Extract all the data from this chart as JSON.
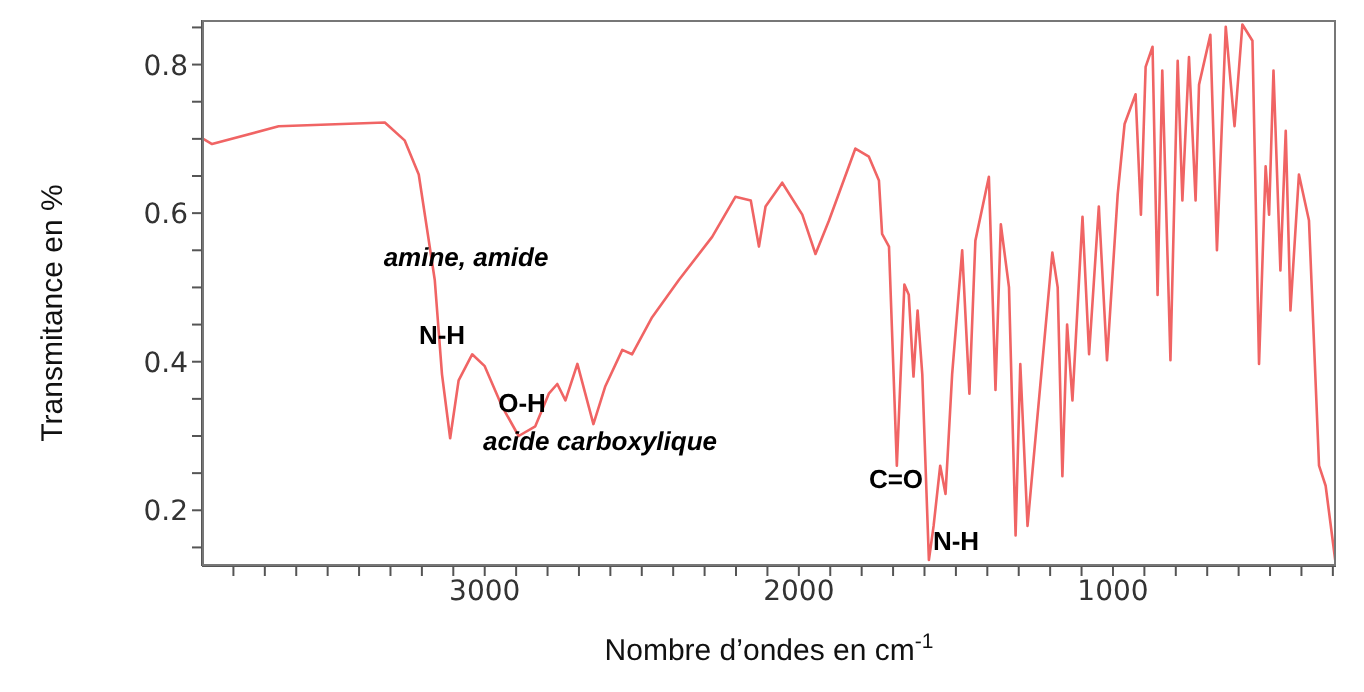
{
  "chart_data": {
    "type": "line",
    "xlabel": "Nombre d’ondes en cm$^{-1}$",
    "ylabel": "Transmitance en %",
    "x": [
      3896,
      3868,
      3656,
      3318,
      3255,
      3210,
      3159,
      3136,
      3110,
      3083,
      3040,
      3000,
      2945,
      2892,
      2839,
      2796,
      2769,
      2743,
      2705,
      2654,
      2616,
      2562,
      2531,
      2467,
      2382,
      2276,
      2202,
      2153,
      2127,
      2106,
      2053,
      1989,
      1947,
      1904,
      1820,
      1777,
      1745,
      1735,
      1713,
      1688,
      1664,
      1650,
      1635,
      1622,
      1607,
      1586,
      1571,
      1550,
      1533,
      1512,
      1480,
      1457,
      1438,
      1395,
      1374,
      1357,
      1331,
      1310,
      1295,
      1272,
      1193,
      1176,
      1161,
      1146,
      1129,
      1097,
      1076,
      1045,
      1019,
      985,
      963,
      928,
      911,
      896,
      874,
      858,
      843,
      817,
      794,
      779,
      758,
      737,
      726,
      690,
      669,
      641,
      613,
      588,
      556,
      535,
      514,
      503,
      489,
      467,
      450,
      435,
      408,
      376,
      344,
      323,
      291
    ],
    "values": [
      0.7,
      0.693,
      0.717,
      0.722,
      0.698,
      0.652,
      0.51,
      0.383,
      0.297,
      0.375,
      0.41,
      0.394,
      0.34,
      0.3,
      0.313,
      0.357,
      0.37,
      0.348,
      0.397,
      0.316,
      0.367,
      0.416,
      0.41,
      0.46,
      0.51,
      0.568,
      0.622,
      0.617,
      0.555,
      0.609,
      0.641,
      0.598,
      0.545,
      0.59,
      0.687,
      0.676,
      0.644,
      0.572,
      0.555,
      0.26,
      0.504,
      0.49,
      0.38,
      0.469,
      0.383,
      0.133,
      0.179,
      0.26,
      0.222,
      0.383,
      0.55,
      0.357,
      0.563,
      0.649,
      0.362,
      0.585,
      0.5,
      0.166,
      0.397,
      0.179,
      0.547,
      0.5,
      0.246,
      0.45,
      0.348,
      0.595,
      0.41,
      0.609,
      0.402,
      0.625,
      0.72,
      0.76,
      0.598,
      0.797,
      0.824,
      0.49,
      0.792,
      0.402,
      0.805,
      0.617,
      0.81,
      0.617,
      0.773,
      0.84,
      0.55,
      0.851,
      0.717,
      0.854,
      0.832,
      0.397,
      0.663,
      0.598,
      0.792,
      0.523,
      0.711,
      0.469,
      0.652,
      0.59,
      0.26,
      0.233,
      0.128
    ],
    "color": "#f06464",
    "marker": "none",
    "line_style": "solid",
    "grid": false,
    "xlim": [
      3900,
      290
    ],
    "xticks": [
      {
        "value": 3800,
        "label": null
      },
      {
        "value": 3700,
        "label": null
      },
      {
        "value": 3600,
        "label": null
      },
      {
        "value": 3500,
        "label": null
      },
      {
        "value": 3400,
        "label": null
      },
      {
        "value": 3300,
        "label": null
      },
      {
        "value": 3200,
        "label": null
      },
      {
        "value": 3100,
        "label": null
      },
      3000,
      {
        "value": 2900,
        "label": null
      },
      {
        "value": 2800,
        "label": null
      },
      {
        "value": 2700,
        "label": null
      },
      {
        "value": 2600,
        "label": null
      },
      {
        "value": 2500,
        "label": null
      },
      {
        "value": 2400,
        "label": null
      },
      {
        "value": 2300,
        "label": null
      },
      {
        "value": 2200,
        "label": null
      },
      {
        "value": 2100,
        "label": null
      },
      2000,
      {
        "value": 1900,
        "label": null
      },
      {
        "value": 1800,
        "label": null
      },
      {
        "value": 1700,
        "label": null
      },
      {
        "value": 1600,
        "label": null
      },
      {
        "value": 1500,
        "label": null
      },
      {
        "value": 1400,
        "label": null
      },
      {
        "value": 1300,
        "label": null
      },
      {
        "value": 1200,
        "label": null
      },
      {
        "value": 1100,
        "label": null
      },
      1000,
      {
        "value": 900,
        "label": null
      },
      {
        "value": 800,
        "label": null
      },
      {
        "value": 700,
        "label": null
      },
      {
        "value": 600,
        "label": null
      },
      {
        "value": 500,
        "label": null
      },
      {
        "value": 400,
        "label": null
      },
      {
        "value": 300,
        "label": null
      }
    ],
    "ylim": [
      0.125,
      0.86
    ],
    "yticks": [
      {
        "value": 0.15,
        "label": null
      },
      0.2,
      {
        "value": 0.25,
        "label": null
      },
      {
        "value": 0.3,
        "label": null
      },
      {
        "value": 0.35,
        "label": null
      },
      0.4,
      {
        "value": 0.45,
        "label": null
      },
      {
        "value": 0.5,
        "label": null
      },
      {
        "value": 0.55,
        "label": null
      },
      0.6,
      {
        "value": 0.65,
        "label": null
      },
      {
        "value": 0.7,
        "label": null
      },
      {
        "value": 0.75,
        "label": null
      },
      0.8,
      {
        "value": 0.85,
        "label": null
      }
    ],
    "annotations": [
      "amine, amide",
      "N-H",
      "O-H",
      "acide carboxylique",
      "C=O",
      "N-H"
    ]
  }
}
